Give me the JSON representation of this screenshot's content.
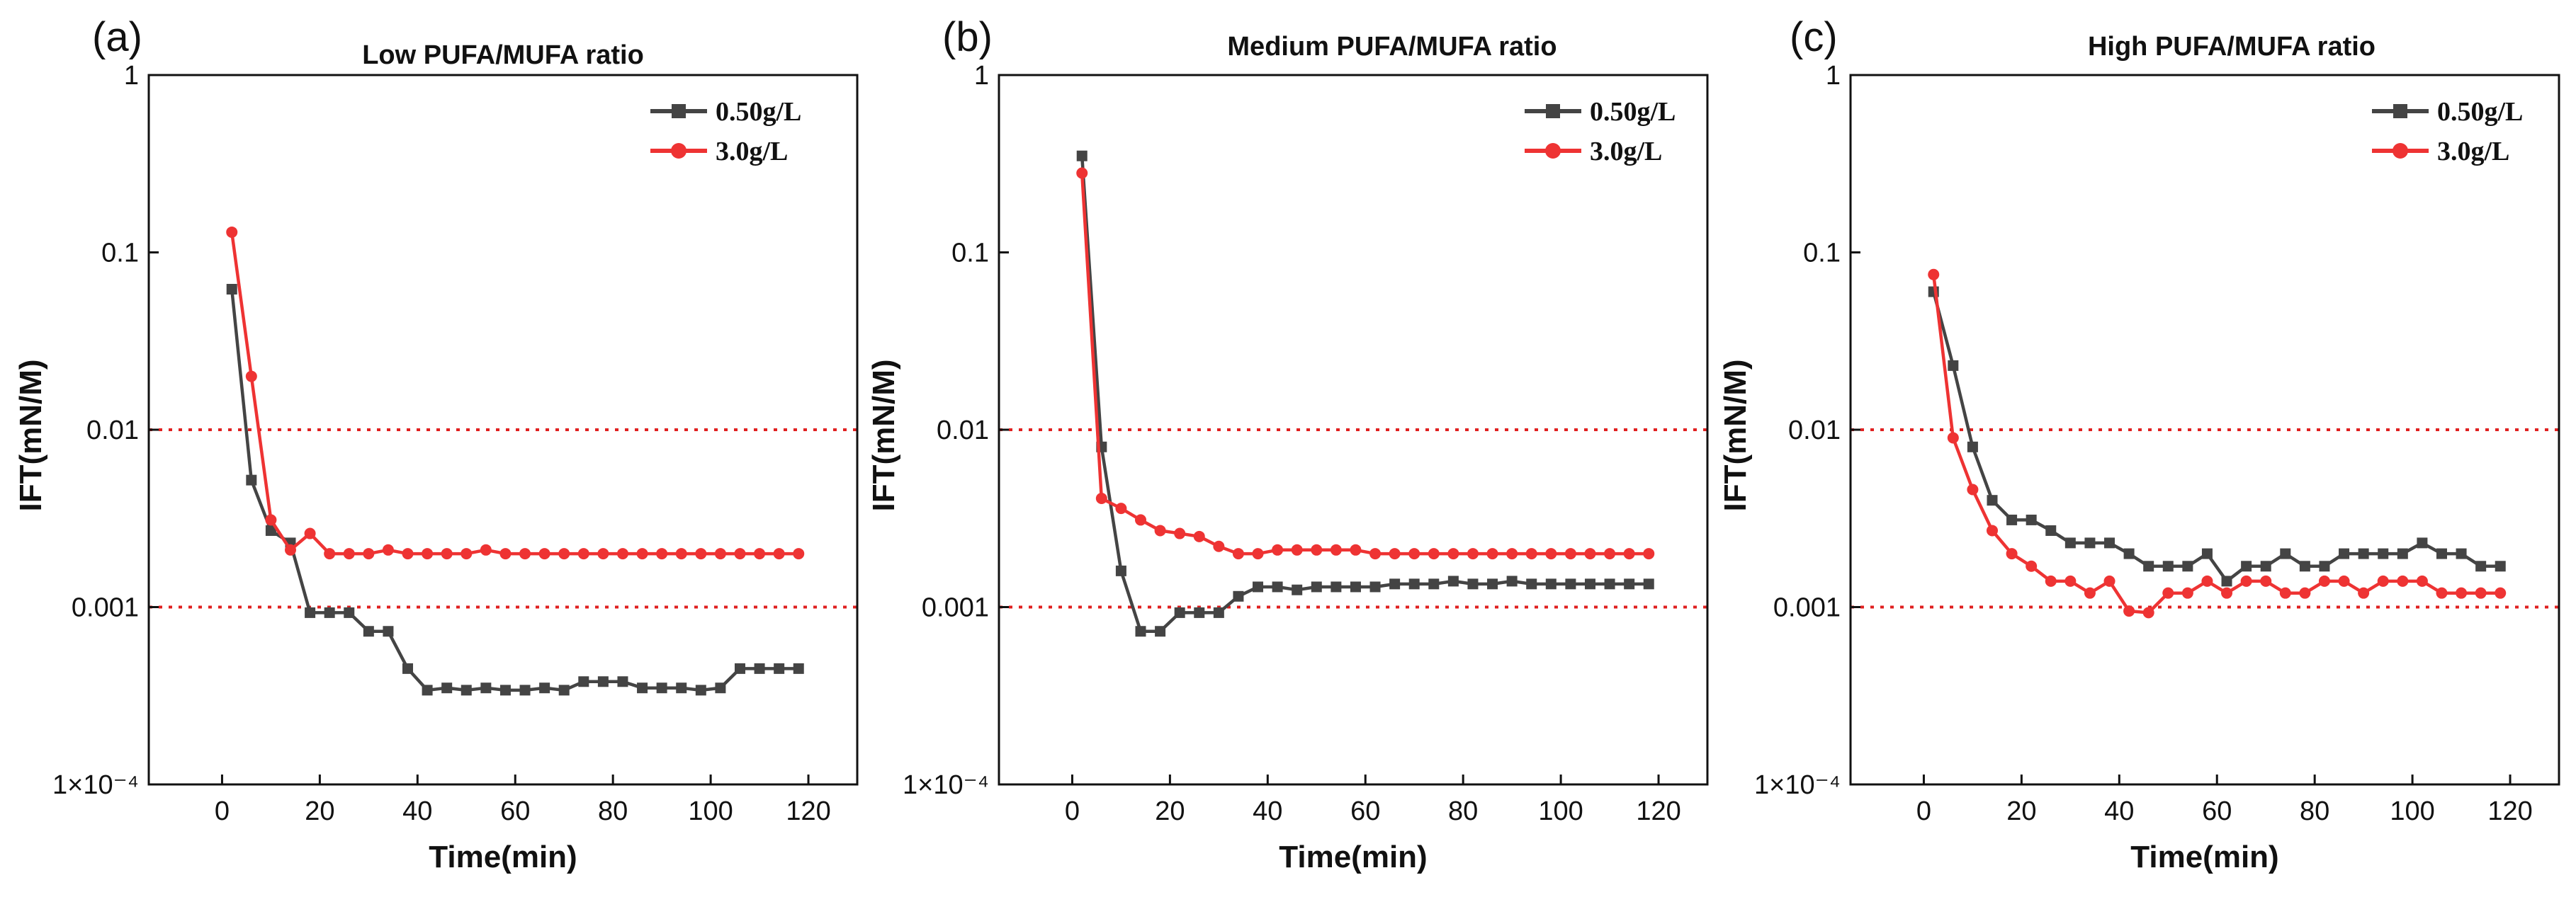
{
  "colors": {
    "series1": "#444444",
    "series2": "#ee3333",
    "refline": "#e02020",
    "axis": "#111111"
  },
  "chart_data": [
    {
      "type": "line",
      "panel_label": "(a)",
      "title": "Low PUFA/MUFA ratio",
      "xlabel": "Time(min)",
      "ylabel": "IFT(mN/M)",
      "yscale": "log",
      "xlim": [
        -15,
        130
      ],
      "ylim": [
        0.0001,
        1
      ],
      "xticks": [
        0,
        20,
        40,
        60,
        80,
        100,
        120
      ],
      "xtick_labels": [
        "0",
        "20",
        "40",
        "60",
        "80",
        "100",
        "120"
      ],
      "yticks": [
        0.0001,
        0.001,
        0.01,
        0.1,
        1
      ],
      "ytick_labels": [
        "1×10⁻⁴",
        "0.001",
        "0.01",
        "0.1",
        "1"
      ],
      "reference_lines": [
        0.01,
        0.001
      ],
      "series": [
        {
          "name": "0.50g/L",
          "marker": "square",
          "x": [
            2,
            6,
            10,
            14,
            18,
            22,
            26,
            30,
            34,
            38,
            42,
            46,
            50,
            54,
            58,
            62,
            66,
            70,
            74,
            78,
            82,
            86,
            90,
            94,
            98,
            102,
            106,
            110,
            114,
            118
          ],
          "y": [
            0.062,
            0.0052,
            0.0027,
            0.0023,
            0.00093,
            0.00093,
            0.00093,
            0.00073,
            0.00073,
            0.00045,
            0.00034,
            0.00035,
            0.00034,
            0.00035,
            0.00034,
            0.00034,
            0.00035,
            0.00034,
            0.00038,
            0.00038,
            0.00038,
            0.00035,
            0.00035,
            0.00035,
            0.00034,
            0.00035,
            0.00045,
            0.00045,
            0.00045,
            0.00045
          ]
        },
        {
          "name": "3.0g/L",
          "marker": "circle",
          "x": [
            2,
            6,
            10,
            14,
            18,
            22,
            26,
            30,
            34,
            38,
            42,
            46,
            50,
            54,
            58,
            62,
            66,
            70,
            74,
            78,
            82,
            86,
            90,
            94,
            98,
            102,
            106,
            110,
            114,
            118
          ],
          "y": [
            0.13,
            0.02,
            0.0031,
            0.0021,
            0.0026,
            0.002,
            0.002,
            0.002,
            0.0021,
            0.002,
            0.002,
            0.002,
            0.002,
            0.0021,
            0.002,
            0.002,
            0.002,
            0.002,
            0.002,
            0.002,
            0.002,
            0.002,
            0.002,
            0.002,
            0.002,
            0.002,
            0.002,
            0.002,
            0.002,
            0.002
          ]
        }
      ]
    },
    {
      "type": "line",
      "panel_label": "(b)",
      "title": "Medium PUFA/MUFA ratio",
      "xlabel": "Time(min)",
      "ylabel": "IFT(mN/M)",
      "yscale": "log",
      "xlim": [
        -15,
        130
      ],
      "ylim": [
        0.0001,
        1
      ],
      "xticks": [
        0,
        20,
        40,
        60,
        80,
        100,
        120
      ],
      "xtick_labels": [
        "0",
        "20",
        "40",
        "60",
        "80",
        "100",
        "120"
      ],
      "yticks": [
        0.0001,
        0.001,
        0.01,
        0.1,
        1
      ],
      "ytick_labels": [
        "1×10⁻⁴",
        "0.001",
        "0.01",
        "0.1",
        "1"
      ],
      "reference_lines": [
        0.01,
        0.001
      ],
      "series": [
        {
          "name": "0.50g/L",
          "marker": "square",
          "x": [
            2,
            6,
            10,
            14,
            18,
            22,
            26,
            30,
            34,
            38,
            42,
            46,
            50,
            54,
            58,
            62,
            66,
            70,
            74,
            78,
            82,
            86,
            90,
            94,
            98,
            102,
            106,
            110,
            114,
            118
          ],
          "y": [
            0.35,
            0.008,
            0.0016,
            0.00073,
            0.00073,
            0.00093,
            0.00093,
            0.00093,
            0.00115,
            0.0013,
            0.0013,
            0.00125,
            0.0013,
            0.0013,
            0.0013,
            0.0013,
            0.00135,
            0.00135,
            0.00135,
            0.0014,
            0.00135,
            0.00135,
            0.0014,
            0.00135,
            0.00135,
            0.00135,
            0.00135,
            0.00135,
            0.00135,
            0.00135
          ]
        },
        {
          "name": "3.0g/L",
          "marker": "circle",
          "x": [
            2,
            6,
            10,
            14,
            18,
            22,
            26,
            30,
            34,
            38,
            42,
            46,
            50,
            54,
            58,
            62,
            66,
            70,
            74,
            78,
            82,
            86,
            90,
            94,
            98,
            102,
            106,
            110,
            114,
            118
          ],
          "y": [
            0.28,
            0.0041,
            0.0036,
            0.0031,
            0.0027,
            0.0026,
            0.0025,
            0.0022,
            0.002,
            0.002,
            0.0021,
            0.0021,
            0.0021,
            0.0021,
            0.0021,
            0.002,
            0.002,
            0.002,
            0.002,
            0.002,
            0.002,
            0.002,
            0.002,
            0.002,
            0.002,
            0.002,
            0.002,
            0.002,
            0.002,
            0.002
          ]
        }
      ]
    },
    {
      "type": "line",
      "panel_label": "(c)",
      "title": "High PUFA/MUFA ratio",
      "xlabel": "Time(min)",
      "ylabel": "IFT(mN/M)",
      "yscale": "log",
      "xlim": [
        -15,
        130
      ],
      "ylim": [
        0.0001,
        1
      ],
      "xticks": [
        0,
        20,
        40,
        60,
        80,
        100,
        120
      ],
      "xtick_labels": [
        "0",
        "20",
        "40",
        "60",
        "80",
        "100",
        "120"
      ],
      "yticks": [
        0.0001,
        0.001,
        0.01,
        0.1,
        1
      ],
      "ytick_labels": [
        "1×10⁻⁴",
        "0.001",
        "0.01",
        "0.1",
        "1"
      ],
      "reference_lines": [
        0.01,
        0.001
      ],
      "series": [
        {
          "name": "0.50g/L",
          "marker": "square",
          "x": [
            2,
            6,
            10,
            14,
            18,
            22,
            26,
            30,
            34,
            38,
            42,
            46,
            50,
            54,
            58,
            62,
            66,
            70,
            74,
            78,
            82,
            86,
            90,
            94,
            98,
            102,
            106,
            110,
            114,
            118
          ],
          "y": [
            0.06,
            0.023,
            0.008,
            0.004,
            0.0031,
            0.0031,
            0.0027,
            0.0023,
            0.0023,
            0.0023,
            0.002,
            0.0017,
            0.0017,
            0.0017,
            0.002,
            0.0014,
            0.0017,
            0.0017,
            0.002,
            0.0017,
            0.0017,
            0.002,
            0.002,
            0.002,
            0.002,
            0.0023,
            0.002,
            0.002,
            0.0017,
            0.0017
          ]
        },
        {
          "name": "3.0g/L",
          "marker": "circle",
          "x": [
            2,
            6,
            10,
            14,
            18,
            22,
            26,
            30,
            34,
            38,
            42,
            46,
            50,
            54,
            58,
            62,
            66,
            70,
            74,
            78,
            82,
            86,
            90,
            94,
            98,
            102,
            106,
            110,
            114,
            118
          ],
          "y": [
            0.075,
            0.009,
            0.0046,
            0.0027,
            0.002,
            0.0017,
            0.0014,
            0.0014,
            0.0012,
            0.0014,
            0.00095,
            0.00093,
            0.0012,
            0.0012,
            0.0014,
            0.0012,
            0.0014,
            0.0014,
            0.0012,
            0.0012,
            0.0014,
            0.0014,
            0.0012,
            0.0014,
            0.0014,
            0.0014,
            0.0012,
            0.0012,
            0.0012,
            0.0012
          ]
        }
      ]
    }
  ]
}
